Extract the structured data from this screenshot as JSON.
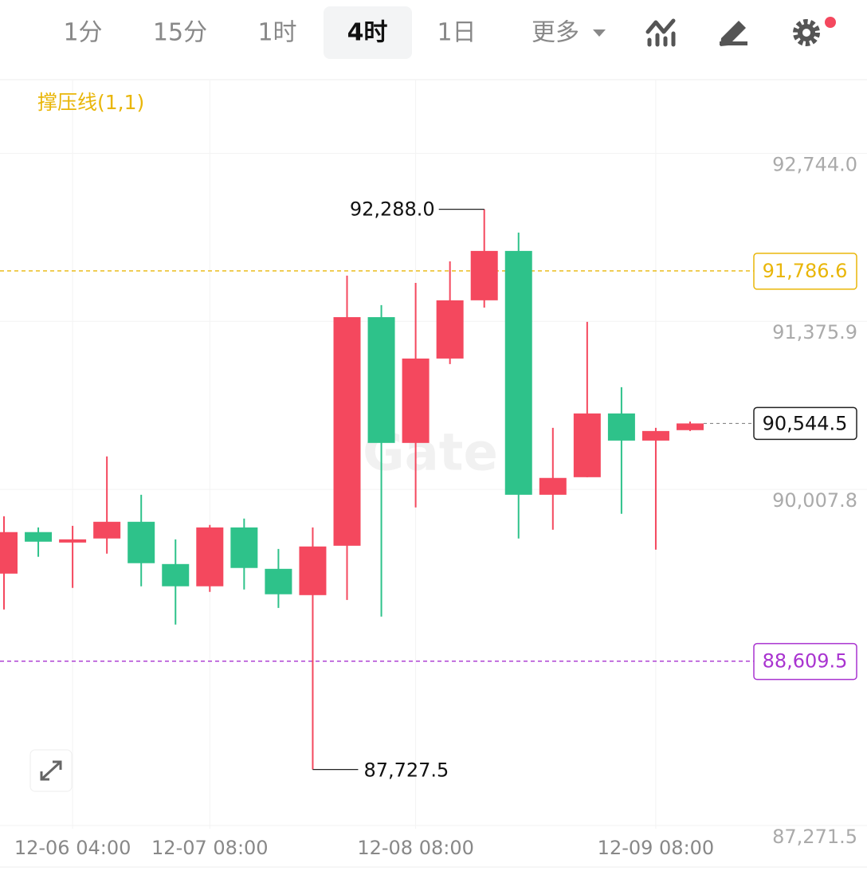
{
  "toolbar": {
    "tabs": [
      "1分",
      "15分",
      "1时",
      "4时",
      "1日"
    ],
    "active": 3,
    "more": "更多"
  },
  "chart_data": {
    "type": "candlestick",
    "indicator": "撑压线(1,1)",
    "watermark": "Gate",
    "categories": [
      null,
      null,
      "12-06 04:00",
      null,
      null,
      null,
      "12-07 08:00",
      null,
      null,
      null,
      null,
      null,
      "12-08 08:00",
      null,
      null,
      null,
      null,
      null,
      null,
      "12-09 08:00",
      null
    ],
    "open": [
      89322,
      89660,
      89575,
      89608,
      89744,
      89400,
      89219,
      89698,
      89361,
      89147,
      89549,
      91410,
      90386,
      91073,
      91547,
      91949,
      89964,
      90107,
      90626,
      90405,
      90490
    ],
    "close": [
      89660,
      89582,
      89601,
      89744,
      89407,
      89219,
      89698,
      89368,
      89154,
      89543,
      91410,
      90386,
      91073,
      91547,
      91949,
      89964,
      90101,
      90626,
      90405,
      90483,
      90544.5
    ],
    "high": [
      89789,
      89698,
      89711,
      90276,
      89964,
      89601,
      89718,
      89770,
      89523,
      89698,
      91748,
      91508,
      91689,
      91864,
      92288.0,
      92098,
      90509,
      91372,
      90840,
      90509,
      90560
    ],
    "low": [
      89030,
      89459,
      89206,
      89485,
      89219,
      88907,
      89173,
      89193,
      89043,
      87727.5,
      89108,
      88972,
      89861,
      91028,
      91488,
      89608,
      89679,
      90107,
      89809,
      89517,
      90483
    ],
    "colors": {
      "up": "#f4485e",
      "down": "#2ec28a"
    },
    "ylim": [
      87245,
      93343
    ],
    "yticks": [
      {
        "value": 92744.0,
        "label": "92,744.0"
      },
      {
        "value": 91375.9,
        "label": "91,375.9"
      },
      {
        "value": 90007.8,
        "label": "90,007.8"
      },
      {
        "value": 87271.5,
        "label": "87,271.5"
      }
    ],
    "grid": true,
    "lines": [
      {
        "value": 91786.6,
        "label": "91,786.6",
        "color": "#e9b609"
      },
      {
        "value": 88609.5,
        "label": "88,609.5",
        "color": "#a934d0"
      }
    ],
    "last_price": {
      "value": 90544.5,
      "label": "90,544.5"
    },
    "annotations": [
      {
        "value": 92288.0,
        "label": "92,288.0"
      },
      {
        "value": 87727.5,
        "label": "87,727.5"
      }
    ]
  }
}
